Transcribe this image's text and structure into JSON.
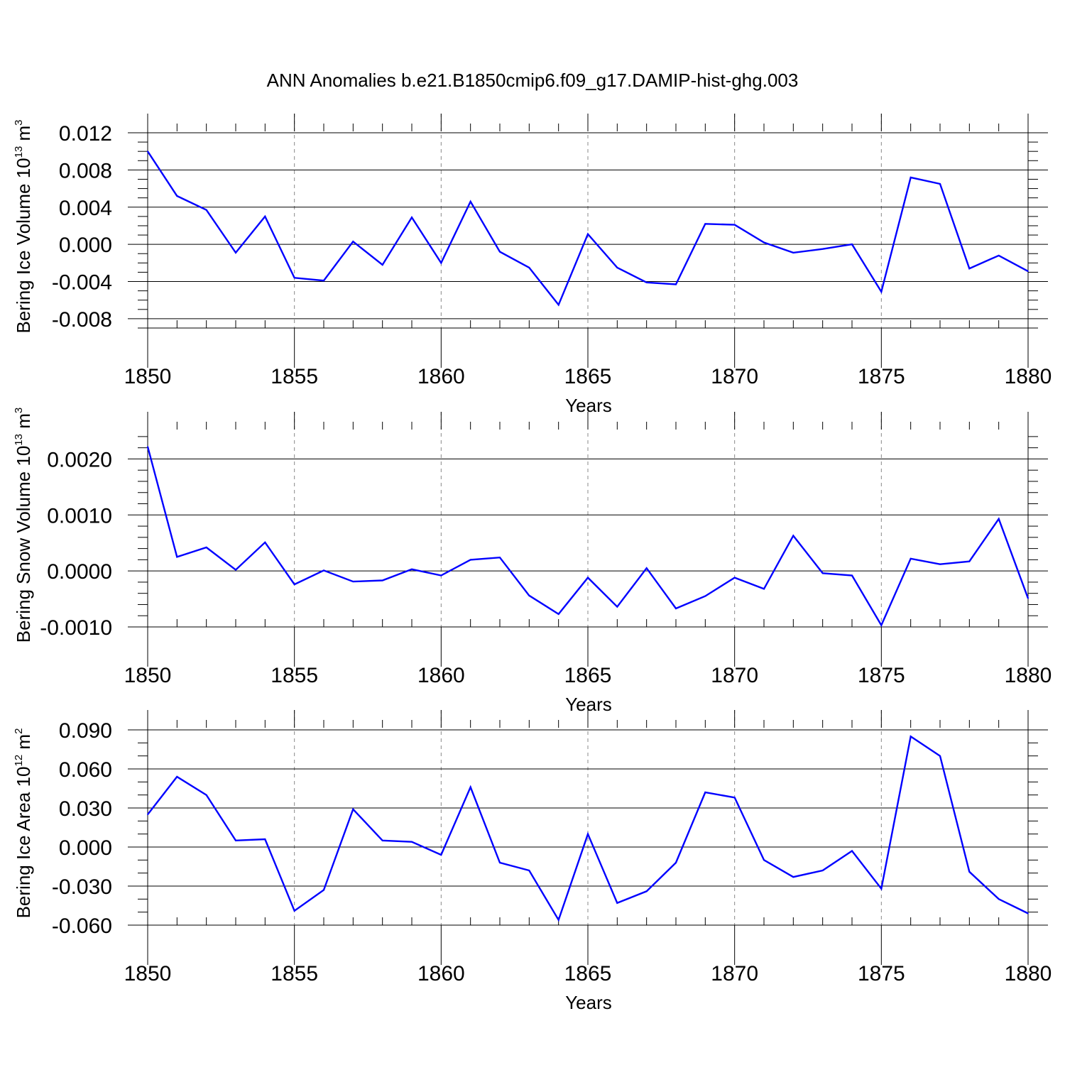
{
  "title": "ANN Anomalies b.e21.B1850cmip6.f09_g17.DAMIP-hist-ghg.003",
  "colors": {
    "line": "#0000ff",
    "axis": "#000000",
    "grid": "#888888"
  },
  "chart_data": [
    {
      "type": "line",
      "ylabel": {
        "text": "Bering Ice Volume 10",
        "sup": "13",
        "unit": " m",
        "unit_sup": "3"
      },
      "xlabel": "Years",
      "xlim": [
        1850,
        1880
      ],
      "ylim": [
        -0.009,
        0.012
      ],
      "yticks": [
        0.012,
        0.008,
        0.004,
        0.0,
        -0.004,
        -0.008
      ],
      "ytick_labels": [
        "0.012",
        "0.008",
        "0.004",
        "0.000",
        "-0.004",
        "-0.008"
      ],
      "yminor_step": 0.001,
      "xticks": [
        1850,
        1855,
        1860,
        1865,
        1870,
        1875,
        1880
      ],
      "xtick_labels": [
        "1850",
        "1855",
        "1860",
        "1865",
        "1870",
        "1875",
        "1880"
      ],
      "grid": "vertical dashed at major x ticks",
      "x": [
        1850,
        1851,
        1852,
        1853,
        1854,
        1855,
        1856,
        1857,
        1858,
        1859,
        1860,
        1861,
        1862,
        1863,
        1864,
        1865,
        1866,
        1867,
        1868,
        1869,
        1870,
        1871,
        1872,
        1873,
        1874,
        1875,
        1876,
        1877,
        1878,
        1879,
        1880
      ],
      "y": [
        0.01,
        0.0052,
        0.0037,
        -0.0009,
        0.003,
        -0.0036,
        -0.0039,
        0.0003,
        -0.0022,
        0.0029,
        -0.002,
        0.0046,
        -0.0008,
        -0.0025,
        -0.0065,
        0.0011,
        -0.0025,
        -0.0041,
        -0.0043,
        0.0022,
        0.0021,
        0.0002,
        -0.0009,
        -0.0005,
        0.0,
        -0.0051,
        0.0072,
        0.0065,
        -0.0026,
        -0.0012,
        -0.0029
      ]
    },
    {
      "type": "line",
      "ylabel": {
        "text": "Bering Snow Volume 10",
        "sup": "13",
        "unit": " m",
        "unit_sup": "3"
      },
      "xlabel": "Years",
      "xlim": [
        1850,
        1880
      ],
      "ylim": [
        -0.001,
        0.0025
      ],
      "yticks": [
        0.002,
        0.001,
        0.0,
        -0.001
      ],
      "ytick_labels": [
        "0.0020",
        "0.0010",
        "0.0000",
        "-0.0010"
      ],
      "yminor_step": 0.0002,
      "xticks": [
        1850,
        1855,
        1860,
        1865,
        1870,
        1875,
        1880
      ],
      "xtick_labels": [
        "1850",
        "1855",
        "1860",
        "1865",
        "1870",
        "1875",
        "1880"
      ],
      "grid": "vertical dashed at major x ticks",
      "x": [
        1850,
        1851,
        1852,
        1853,
        1854,
        1855,
        1856,
        1857,
        1858,
        1859,
        1860,
        1861,
        1862,
        1863,
        1864,
        1865,
        1866,
        1867,
        1868,
        1869,
        1870,
        1871,
        1872,
        1873,
        1874,
        1875,
        1876,
        1877,
        1878,
        1879,
        1880
      ],
      "y": [
        0.00222,
        0.00025,
        0.00042,
        2e-05,
        0.00051,
        -0.00024,
        1e-05,
        -0.00019,
        -0.00017,
        3e-05,
        -8e-05,
        0.0002,
        0.00024,
        -0.00044,
        -0.00077,
        -0.00012,
        -0.00064,
        5e-05,
        -0.00067,
        -0.00045,
        -0.00012,
        -0.00032,
        0.00063,
        -4e-05,
        -8e-05,
        -0.00097,
        0.00022,
        0.00012,
        0.00017,
        0.00093,
        -0.00049
      ]
    },
    {
      "type": "line",
      "ylabel": {
        "text": "Bering Ice Area 10",
        "sup": "12",
        "unit": " m",
        "unit_sup": "2"
      },
      "xlabel": "Years",
      "xlim": [
        1850,
        1880
      ],
      "ylim": [
        -0.06,
        0.09
      ],
      "yticks": [
        0.09,
        0.06,
        0.03,
        0.0,
        -0.03,
        -0.06
      ],
      "ytick_labels": [
        "0.090",
        "0.060",
        "0.030",
        "0.000",
        "-0.030",
        "-0.060"
      ],
      "yminor_step": 0.01,
      "xticks": [
        1850,
        1855,
        1860,
        1865,
        1870,
        1875,
        1880
      ],
      "xtick_labels": [
        "1850",
        "1855",
        "1860",
        "1865",
        "1870",
        "1875",
        "1880"
      ],
      "grid": "vertical dashed at major x ticks",
      "x": [
        1850,
        1851,
        1852,
        1853,
        1854,
        1855,
        1856,
        1857,
        1858,
        1859,
        1860,
        1861,
        1862,
        1863,
        1864,
        1865,
        1866,
        1867,
        1868,
        1869,
        1870,
        1871,
        1872,
        1873,
        1874,
        1875,
        1876,
        1877,
        1878,
        1879,
        1880
      ],
      "y": [
        0.025,
        0.054,
        0.04,
        0.005,
        0.006,
        -0.049,
        -0.033,
        0.029,
        0.005,
        0.004,
        -0.006,
        0.046,
        -0.012,
        -0.018,
        -0.056,
        0.01,
        -0.043,
        -0.034,
        -0.012,
        0.042,
        0.038,
        -0.01,
        -0.023,
        -0.018,
        -0.003,
        -0.032,
        0.085,
        0.07,
        -0.019,
        -0.04,
        -0.051
      ]
    }
  ]
}
